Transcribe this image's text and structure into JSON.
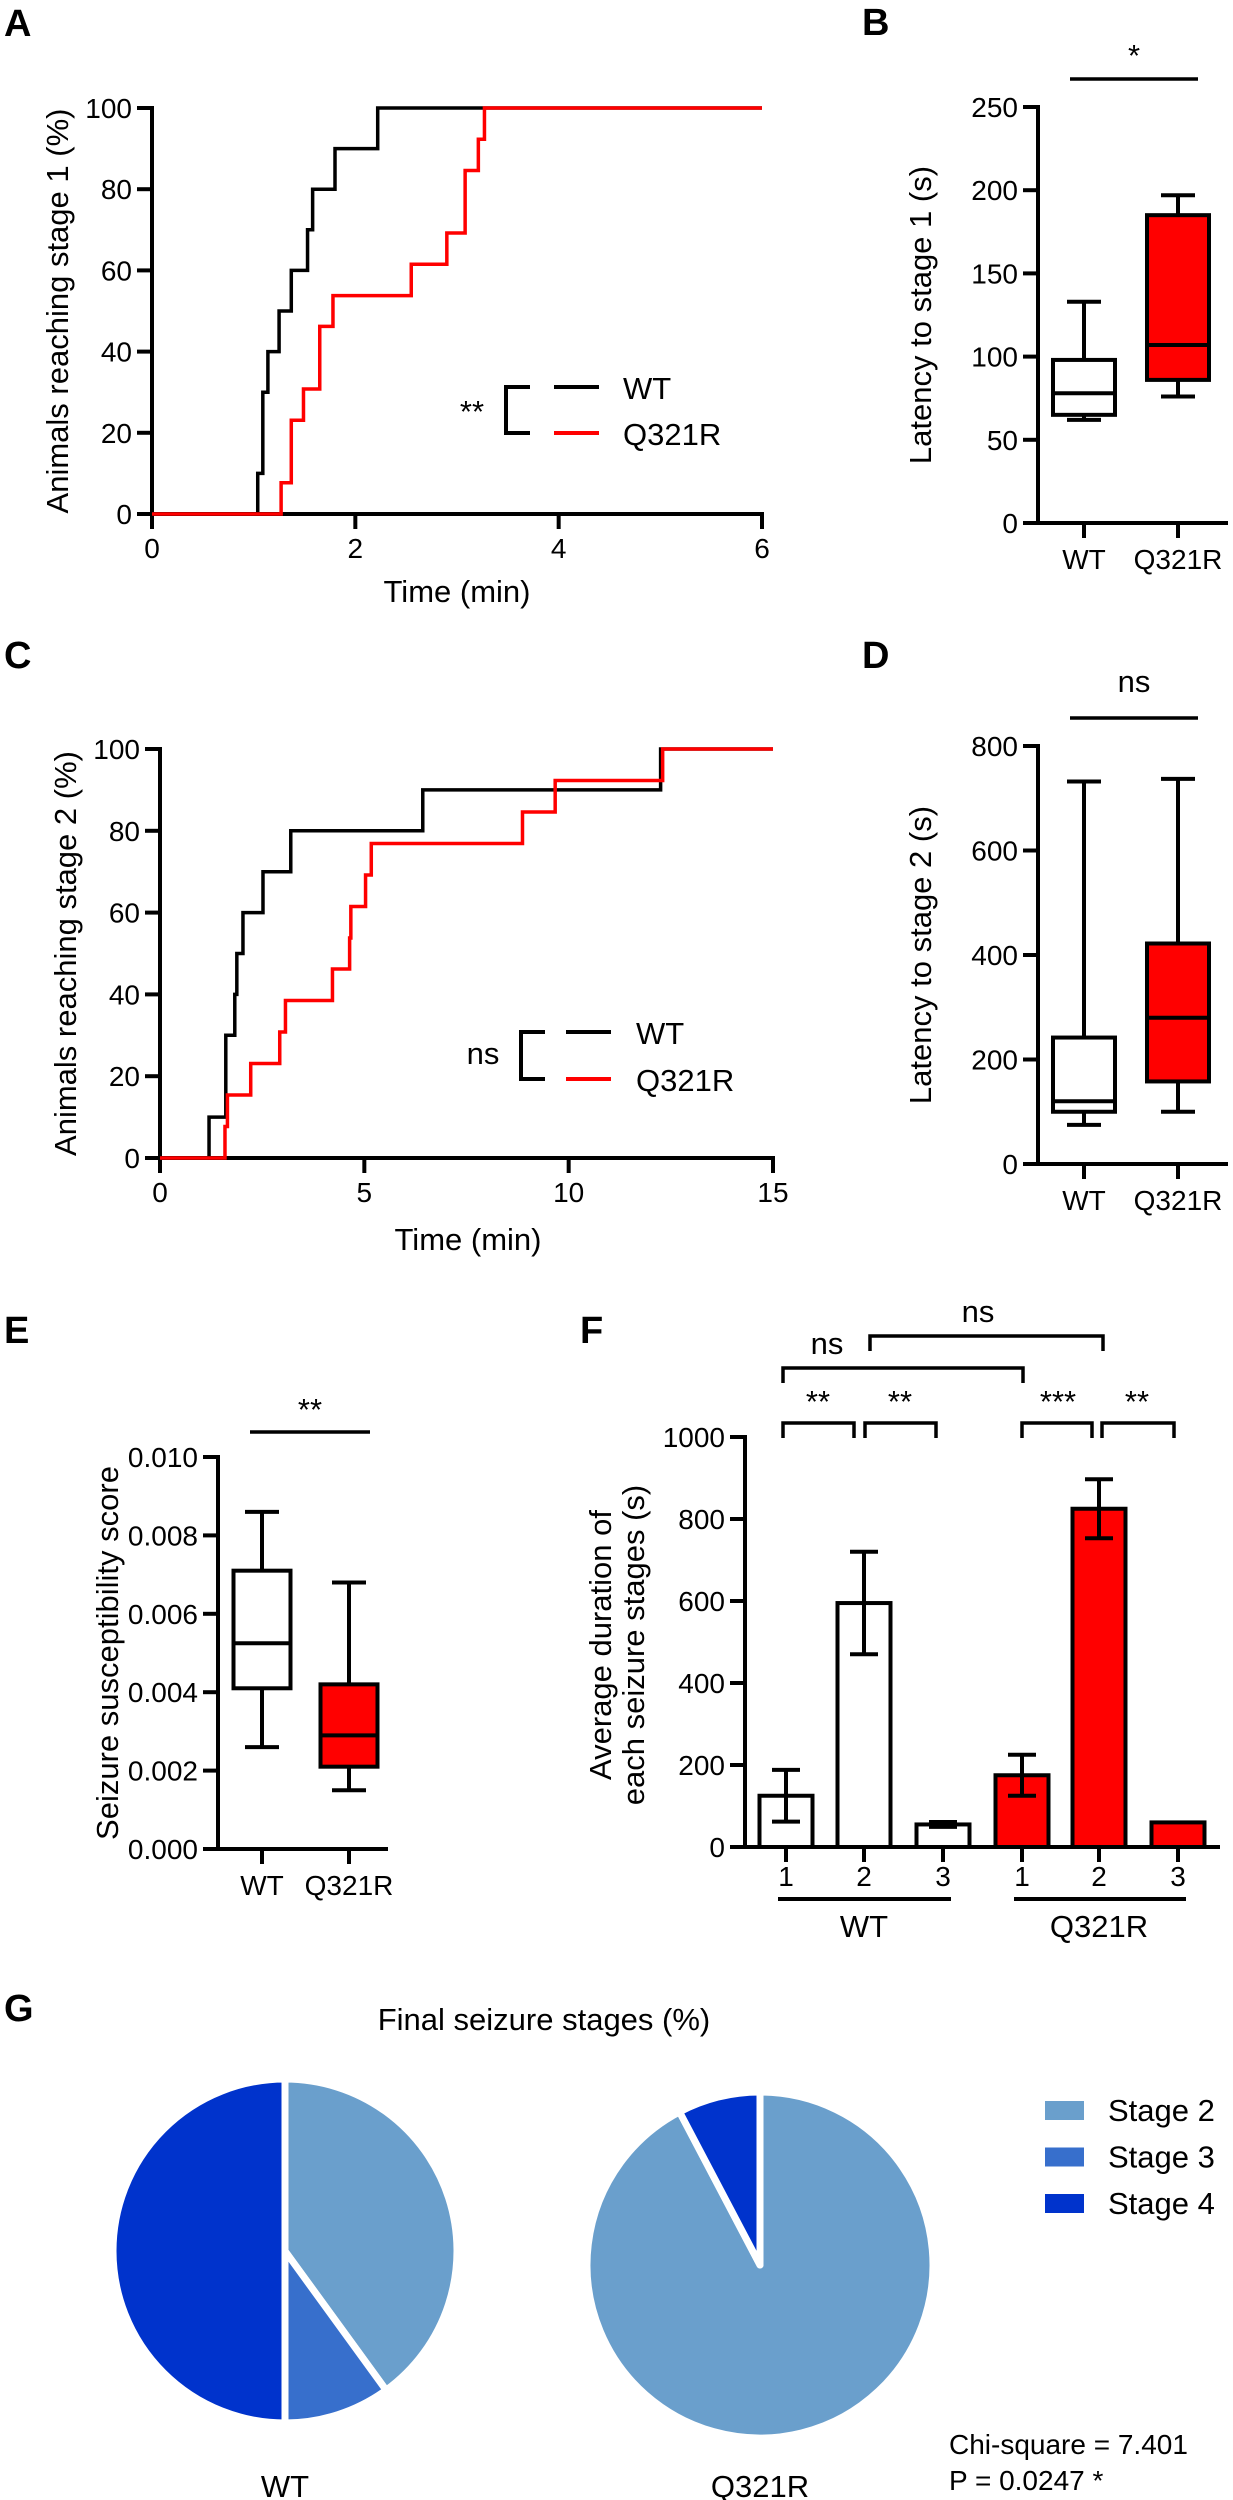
{
  "figure": {
    "panel_labels": [
      "A",
      "B",
      "C",
      "D",
      "E",
      "F",
      "G"
    ]
  },
  "chart_data": [
    {
      "panel": "A",
      "type": "line",
      "step": true,
      "xlabel": "Time (min)",
      "ylabel": "Animals reaching stage 1 (%)",
      "xlim": [
        0,
        6
      ],
      "ylim": [
        0,
        100
      ],
      "xticks": [
        "0",
        "2",
        "4",
        "6"
      ],
      "yticks": [
        "0",
        "20",
        "40",
        "60",
        "80",
        "100"
      ],
      "legend": {
        "significance": "**",
        "position": "lower-right"
      },
      "series": [
        {
          "name": "WT",
          "color": "#000000",
          "points": [
            [
              0,
              0
            ],
            [
              1.04,
              10
            ],
            [
              1.09,
              30
            ],
            [
              1.14,
              40
            ],
            [
              1.25,
              50
            ],
            [
              1.37,
              60
            ],
            [
              1.53,
              70
            ],
            [
              1.58,
              80
            ],
            [
              1.8,
              90
            ],
            [
              2.22,
              100
            ],
            [
              6,
              100
            ]
          ]
        },
        {
          "name": "Q321R",
          "color": "#FF0000",
          "points": [
            [
              0,
              0
            ],
            [
              1.27,
              7.7
            ],
            [
              1.37,
              23.1
            ],
            [
              1.49,
              30.8
            ],
            [
              1.65,
              46.2
            ],
            [
              1.78,
              53.8
            ],
            [
              2.55,
              61.5
            ],
            [
              2.9,
              69.2
            ],
            [
              3.08,
              84.6
            ],
            [
              3.21,
              92.3
            ],
            [
              3.27,
              100
            ],
            [
              6,
              100
            ]
          ]
        }
      ]
    },
    {
      "panel": "B",
      "type": "box",
      "ylabel": "Latency to stage 1 (s)",
      "ylim": [
        0,
        250
      ],
      "yticks": [
        "0",
        "50",
        "100",
        "150",
        "200",
        "250"
      ],
      "categories": [
        "WT",
        "Q321R"
      ],
      "boxes": [
        {
          "min": 62,
          "q1": 65,
          "median": 78,
          "q3": 98,
          "max": 133,
          "fill": "#FFFFFF"
        },
        {
          "min": 76,
          "q1": 86,
          "median": 107,
          "q3": 185,
          "max": 197,
          "fill": "#FF0000"
        }
      ],
      "significance": "*"
    },
    {
      "panel": "C",
      "type": "line",
      "step": true,
      "xlabel": "Time (min)",
      "ylabel": "Animals reaching stage 2 (%)",
      "xlim": [
        0,
        15
      ],
      "ylim": [
        0,
        100
      ],
      "xticks": [
        "0",
        "5",
        "10",
        "15"
      ],
      "yticks": [
        "0",
        "20",
        "40",
        "60",
        "80",
        "100"
      ],
      "legend": {
        "significance": "ns",
        "position": "lower-right"
      },
      "series": [
        {
          "name": "WT",
          "color": "#000000",
          "points": [
            [
              0,
              0
            ],
            [
              1.2,
              10
            ],
            [
              1.61,
              30
            ],
            [
              1.83,
              40
            ],
            [
              1.88,
              50
            ],
            [
              2.03,
              60
            ],
            [
              2.52,
              70
            ],
            [
              3.2,
              80
            ],
            [
              6.43,
              90
            ],
            [
              12.25,
              100
            ],
            [
              15,
              100
            ]
          ]
        },
        {
          "name": "Q321R",
          "color": "#FF0000",
          "points": [
            [
              0,
              0
            ],
            [
              1.59,
              7.7
            ],
            [
              1.65,
              15.4
            ],
            [
              2.22,
              23.1
            ],
            [
              2.93,
              30.8
            ],
            [
              3.07,
              38.5
            ],
            [
              4.22,
              46.2
            ],
            [
              4.64,
              53.8
            ],
            [
              4.67,
              61.5
            ],
            [
              5.03,
              69.2
            ],
            [
              5.17,
              76.9
            ],
            [
              8.87,
              84.6
            ],
            [
              9.67,
              92.3
            ],
            [
              12.3,
              100
            ],
            [
              15,
              100
            ]
          ]
        }
      ]
    },
    {
      "panel": "D",
      "type": "box",
      "ylabel": "Latency to stage 2 (s)",
      "ylim": [
        0,
        800
      ],
      "yticks": [
        "0",
        "200",
        "400",
        "600",
        "800"
      ],
      "categories": [
        "WT",
        "Q321R"
      ],
      "boxes": [
        {
          "min": 75,
          "q1": 100,
          "median": 120,
          "q3": 242,
          "max": 732,
          "fill": "#FFFFFF"
        },
        {
          "min": 100,
          "q1": 158,
          "median": 280,
          "q3": 422,
          "max": 737,
          "fill": "#FF0000"
        }
      ],
      "significance": "ns"
    },
    {
      "panel": "E",
      "type": "box",
      "ylabel": "Seizure susceptibility score",
      "ylim": [
        0,
        0.01
      ],
      "yticks": [
        "0.000",
        "0.002",
        "0.004",
        "0.006",
        "0.008",
        "0.010"
      ],
      "categories": [
        "WT",
        "Q321R"
      ],
      "boxes": [
        {
          "min": 0.0026,
          "q1": 0.0041,
          "median": 0.00525,
          "q3": 0.0071,
          "max": 0.0086,
          "fill": "#FFFFFF"
        },
        {
          "min": 0.0015,
          "q1": 0.0021,
          "median": 0.0029,
          "q3": 0.0042,
          "max": 0.0068,
          "fill": "#FF0000"
        }
      ],
      "significance": "**"
    },
    {
      "panel": "F",
      "type": "bar",
      "ylabel_lines": [
        "Average duration of",
        "each seizure stages (s)"
      ],
      "ylim": [
        0,
        1000
      ],
      "yticks": [
        "0",
        "200",
        "400",
        "600",
        "800",
        "1000"
      ],
      "groups": [
        {
          "name": "WT",
          "fill": "#FFFFFF",
          "categories": [
            "1",
            "2",
            "3"
          ],
          "values": [
            125,
            595,
            55
          ],
          "errors": [
            63,
            125,
            6
          ]
        },
        {
          "name": "Q321R",
          "fill": "#FF0000",
          "categories": [
            "1",
            "2",
            "3"
          ],
          "values": [
            175,
            825,
            60
          ],
          "errors": [
            50,
            72,
            0
          ]
        }
      ],
      "comparisons": [
        {
          "a": "WT 1",
          "b": "WT 2",
          "label": "**"
        },
        {
          "a": "WT 2",
          "b": "WT 3",
          "label": "**"
        },
        {
          "a": "Q321R 1",
          "b": "Q321R 2",
          "label": "***"
        },
        {
          "a": "Q321R 2",
          "b": "Q321R 3",
          "label": "**"
        },
        {
          "a": "WT 1",
          "b": "Q321R 1",
          "label": "ns"
        },
        {
          "a": "WT 2",
          "b": "Q321R 2",
          "label": "ns"
        }
      ]
    },
    {
      "panel": "G",
      "type": "pie",
      "title": "Final seizure stages (%)",
      "legend": [
        {
          "label": "Stage 2",
          "color": "#6A9FCC"
        },
        {
          "label": "Stage 3",
          "color": "#376FCC"
        },
        {
          "label": "Stage 4",
          "color": "#0033CC"
        }
      ],
      "pies": [
        {
          "name": "WT",
          "values": [
            40,
            10,
            50
          ]
        },
        {
          "name": "Q321R",
          "values": [
            92.3,
            0,
            7.7
          ]
        }
      ],
      "annotation": [
        "Chi-square = 7.401",
        "P = 0.0247 *"
      ]
    }
  ]
}
